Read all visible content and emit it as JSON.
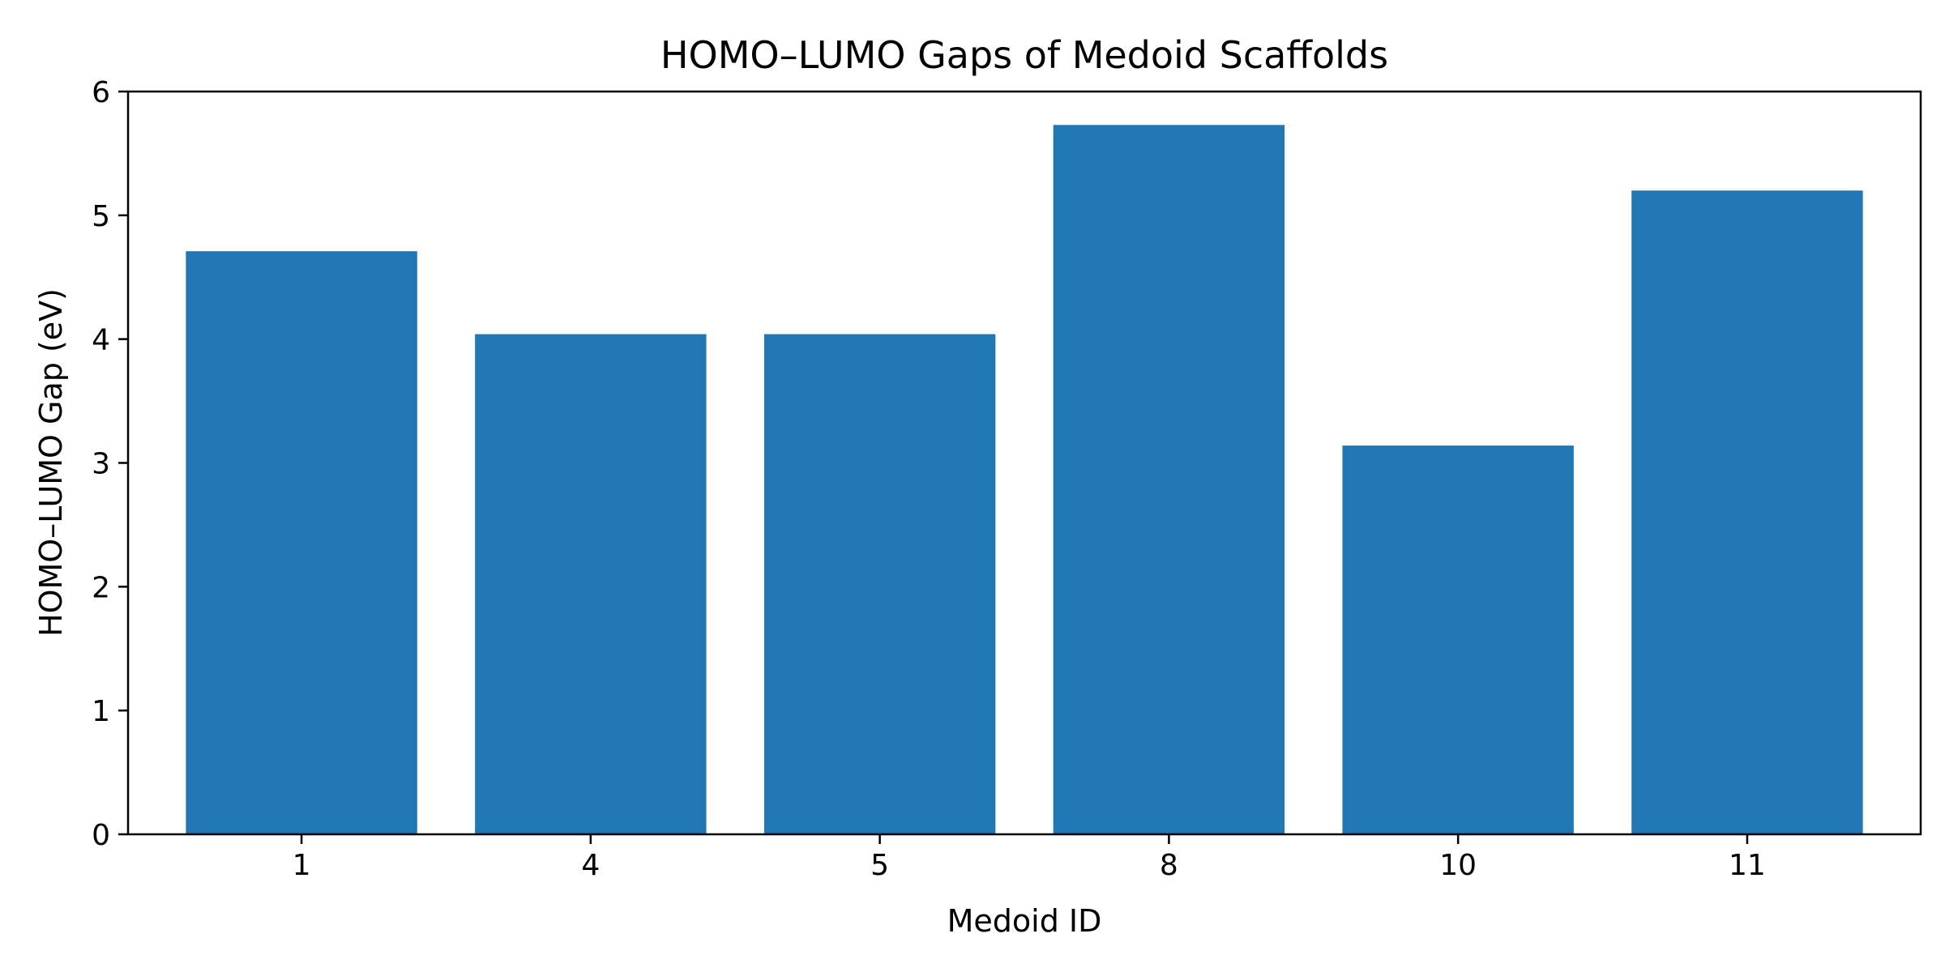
{
  "chart_data": {
    "type": "bar",
    "title": "HOMO–LUMO Gaps of Medoid Scaffolds",
    "xlabel": "Medoid ID",
    "ylabel": "HOMO–LUMO Gap (eV)",
    "categories": [
      "1",
      "4",
      "5",
      "8",
      "10",
      "11"
    ],
    "values": [
      4.71,
      4.04,
      4.04,
      5.73,
      3.14,
      5.2
    ],
    "ylim": [
      0,
      6
    ],
    "yticks": [
      0,
      1,
      2,
      3,
      4,
      5,
      6
    ],
    "grid": false,
    "legend": "none",
    "bar_color": "#2077b4"
  }
}
